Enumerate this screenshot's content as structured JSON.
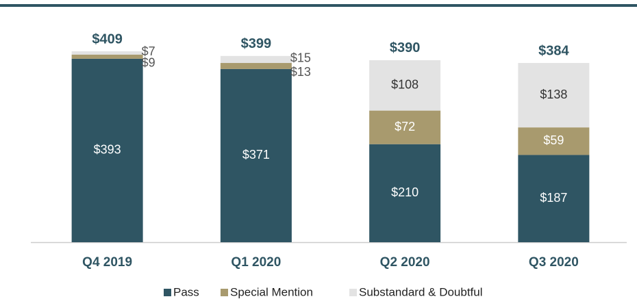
{
  "chart_data": {
    "type": "stacked_bar",
    "categories": [
      "Q4 2019",
      "Q1 2020",
      "Q2 2020",
      "Q3 2020"
    ],
    "series": [
      {
        "name": "Pass",
        "color": "#2f5563",
        "values": [
          393,
          371,
          210,
          187
        ],
        "value_labels": [
          "$393",
          "$371",
          "$210",
          "$187"
        ]
      },
      {
        "name": "Special Mention",
        "color": "#a89a6e",
        "values": [
          9,
          13,
          72,
          59
        ],
        "value_labels": [
          "$9",
          "$13",
          "$72",
          "$59"
        ]
      },
      {
        "name": "Substandard & Doubtful",
        "color": "#e3e3e3",
        "values": [
          7,
          15,
          108,
          138
        ],
        "value_labels": [
          "$7",
          "$15",
          "$108",
          "$138"
        ]
      }
    ],
    "totals": [
      409,
      399,
      390,
      384
    ],
    "total_labels": [
      "$409",
      "$399",
      "$390",
      "$384"
    ],
    "ylim": [
      0,
      450
    ],
    "legend": "bottom"
  }
}
